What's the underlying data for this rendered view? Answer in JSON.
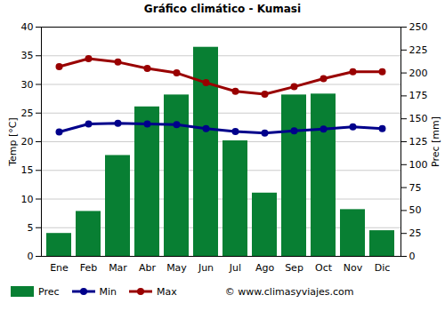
{
  "chart_data": {
    "type": "bar",
    "title": "Gráfico climático - Kumasi",
    "categories": [
      "Ene",
      "Feb",
      "Mar",
      "Abr",
      "May",
      "Jun",
      "Jul",
      "Ago",
      "Sep",
      "Oct",
      "Nov",
      "Dic"
    ],
    "series": [
      {
        "name": "Prec",
        "type": "bar",
        "axis": "y2",
        "color": "#087f33",
        "values": [
          25,
          49,
          110,
          163,
          176,
          228,
          126,
          69,
          176,
          177,
          51,
          28
        ]
      },
      {
        "name": "Min",
        "type": "line",
        "marker": "circle",
        "line_style": "solid",
        "color": "#00008b",
        "values": [
          21.7,
          23.1,
          23.2,
          23.1,
          23.0,
          22.3,
          21.8,
          21.5,
          21.9,
          22.2,
          22.6,
          22.3
        ]
      },
      {
        "name": "Max",
        "type": "line",
        "marker": "circle",
        "line_style": "solid",
        "color": "#990000",
        "values": [
          33.1,
          34.5,
          33.9,
          32.8,
          32.0,
          30.3,
          28.8,
          28.3,
          29.6,
          31.0,
          32.2,
          32.2
        ]
      }
    ],
    "y_label": "Temp [°C]",
    "y2_label": "Prec [mm]",
    "ylim": [
      0,
      40
    ],
    "yticks": [
      0,
      5,
      10,
      15,
      20,
      25,
      30,
      35,
      40
    ],
    "y2lim": [
      0,
      250
    ],
    "y2ticks": [
      0,
      25,
      50,
      75,
      100,
      125,
      150,
      175,
      200,
      225,
      250
    ],
    "grid": true,
    "legend": "bottom",
    "annotations": [
      "© www.climasyviajes.com"
    ]
  }
}
